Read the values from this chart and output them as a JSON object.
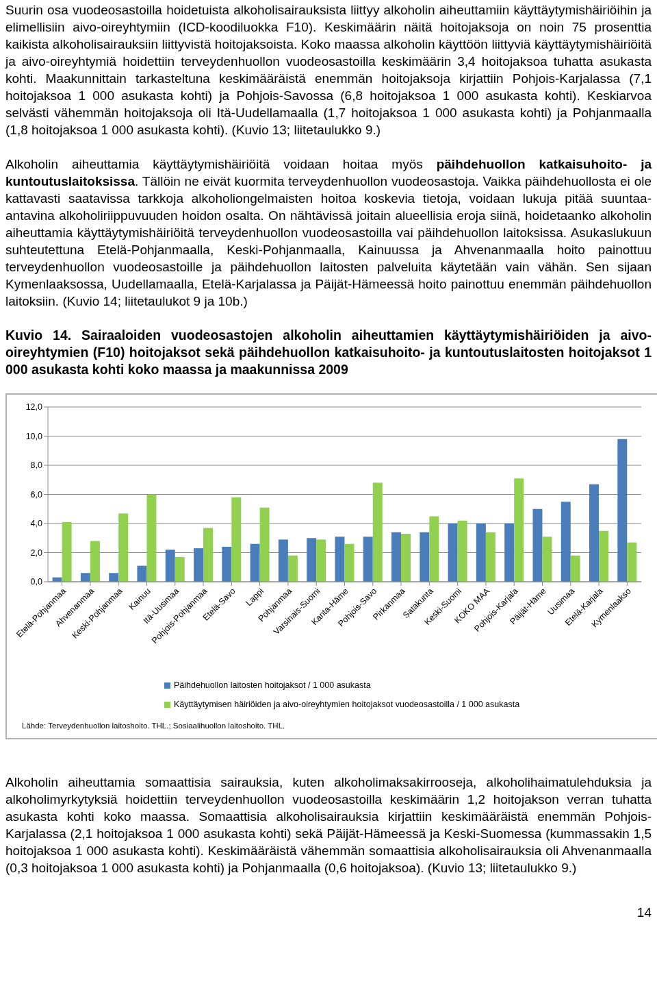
{
  "chart_data": {
    "type": "bar",
    "title": "Kuvio 14. Sairaaloiden vuodeosastojen alkoholin aiheuttamien käyttäytymishäiriöiden ja aivo-oireyhtymien (F10) hoitojaksot sekä päihdehuollon katkaisuhoito- ja kuntoutuslaitosten hoitojaksot 1 000 asukasta kohti koko maassa ja maakunnissa 2009",
    "categories": [
      "Etelä-Pohjanmaa",
      "Ahvenanmaa",
      "Keski-Pohjanmaa",
      "Kainuu",
      "Itä-Uusimaa",
      "Pohjois-Pohjanmaa",
      "Etelä-Savo",
      "Lappi",
      "Pohjanmaa",
      "Varsinais-Suomi",
      "Kanta-Häme",
      "Pohjois-Savo",
      "Pirkanmaa",
      "Satakunta",
      "Keski-Suomi",
      "KOKO MAA",
      "Pohjois-Karjala",
      "Päijät-Häme",
      "Uusimaa",
      "Etelä-Karjala",
      "Kymenlaakso"
    ],
    "series": [
      {
        "name": "Päihdehuollon laitosten hoitojaksot / 1 000 asukasta",
        "color": "#4a7ebb",
        "values": [
          0.3,
          0.6,
          0.6,
          1.1,
          2.2,
          2.3,
          2.4,
          2.6,
          2.9,
          3.0,
          3.1,
          3.1,
          3.4,
          3.4,
          4.0,
          4.0,
          4.0,
          5.0,
          5.5,
          6.7,
          9.8
        ]
      },
      {
        "name": "Käyttäytymisen häiriöiden ja aivo-oireyhtymien hoitojaksot vuodeosastoilla / 1 000 asukasta",
        "color": "#92d050",
        "values": [
          4.1,
          2.8,
          4.7,
          6.0,
          1.7,
          3.7,
          5.8,
          5.1,
          1.8,
          2.9,
          2.6,
          6.8,
          3.3,
          4.5,
          4.2,
          3.4,
          7.1,
          3.1,
          1.8,
          3.5,
          2.7
        ]
      }
    ],
    "ylim": [
      0,
      12
    ],
    "yticks": [
      {
        "value": 0,
        "label": "0,0"
      },
      {
        "value": 2,
        "label": "2,0"
      },
      {
        "value": 4,
        "label": "4,0"
      },
      {
        "value": 6,
        "label": "6,0"
      },
      {
        "value": 8,
        "label": "8,0"
      },
      {
        "value": 10,
        "label": "10,0"
      },
      {
        "value": 12,
        "label": "12,0"
      }
    ],
    "grid": "y",
    "legend": "bottom",
    "annotations": [
      "Suurin osa vuodeosastoilla hoidetuista alkoholisairauksista liittyy alkoholin aiheuttamiin käyttäytymishäiriöihin ja elimellisiin aivo-oireyhtymiin (ICD-koodiluokka F10). Keskimäärin näitä hoitojaksoja on noin 75 prosenttia kaikista alkoholisairauksiin liittyvistä hoitojaksoista. Koko maassa alkoholin käyttöön liittyviä käyttäytymishäiriöitä ja aivo-oireyhtymiä hoidettiin terveydenhuollon vuodeosastoilla keskimäärin 3,4 hoitojaksoa tuhatta asukasta kohti. Maakunnittain tarkasteltuna keskimääräistä enemmän hoitojaksoja kirjattiin Pohjois-Karjalassa (7,1 hoitojaksoa 1 000 asukasta kohti) ja Pohjois-Savossa (6,8 hoitojaksoa 1 000 asukasta kohti). Keskiarvoa selvästi vähemmän hoitojaksoja oli Itä-Uudellamaalla (1,7 hoitojaksoa 1 000 asukasta kohti) ja Pohjanmaalla (1,8 hoitojaksoa 1 000 asukasta kohti). (Kuvio 13; liitetaulukko 9.)",
      "Alkoholin aiheuttamia käyttäytymishäiriöitä voidaan hoitaa myös",
      "päihdehuollon katkaisuhoito- ja kuntoutuslaitoksissa",
      ". Tällöin ne eivät kuormita terveydenhuollon vuodeosastoja. Vaikka päihdehuollosta ei ole kattavasti saatavissa tarkkoja alkoholiongelmaisten hoitoa koskevia tietoja, voidaan lukuja pitää suuntaa-antavina alkoholiriippuvuuden hoidon osalta. On nähtävissä joitain alueellisia eroja siinä, hoidetaanko alkoholin aiheuttamia käyttäytymishäiriöitä terveydenhuollon vuodeosastoilla vai päihdehuollon laitoksissa. Asukaslukuun suhteutettuna Etelä-Pohjanmaalla, Keski-Pohjanmaalla, Kainuussa ja Ahvenanmaalla hoito painottuu terveydenhuollon vuodeosastoille ja päihdehuollon laitosten palveluita käytetään vain vähän. Sen sijaan Kymenlaaksossa, Uudellamaalla, Etelä-Karjalassa ja Päijät-Hämeessä hoito painottuu enemmän päihdehuollon laitoksiin. (Kuvio 14; liitetaulukot 9 ja 10b.)",
      "Lähde: Terveydenhuollon laitoshoito. THL.; Sosiaalihuollon laitoshoito. THL.",
      "Alkoholin aiheuttamia somaattisia sairauksia, kuten alkoholimaksakirrooseja, alkoholihaimatulehduksia ja alkoholimyrkytyksiä hoidettiin terveydenhuollon vuodeosastoilla keskimäärin 1,2 hoitojakson verran tuhatta asukasta kohti koko maassa. Somaattisia alkoholisairauksia kirjattiin keskimääräistä enemmän Pohjois-Karjalassa (2,1 hoitojaksoa 1 000 asukasta kohti) sekä Päijät-Hämeessä ja Keski-Suomessa (kummassakin 1,5 hoitojaksoa 1 000 asukasta kohti). Keskimääräistä vähemmän somaattisia alkoholisairauksia oli Ahvenanmaalla (0,3 hoitojaksoa 1 000 asukasta kohti) ja Pohjanmaalla (0,6 hoitojaksoa). (Kuvio 13; liitetaulukko 9.)",
      "14"
    ]
  }
}
